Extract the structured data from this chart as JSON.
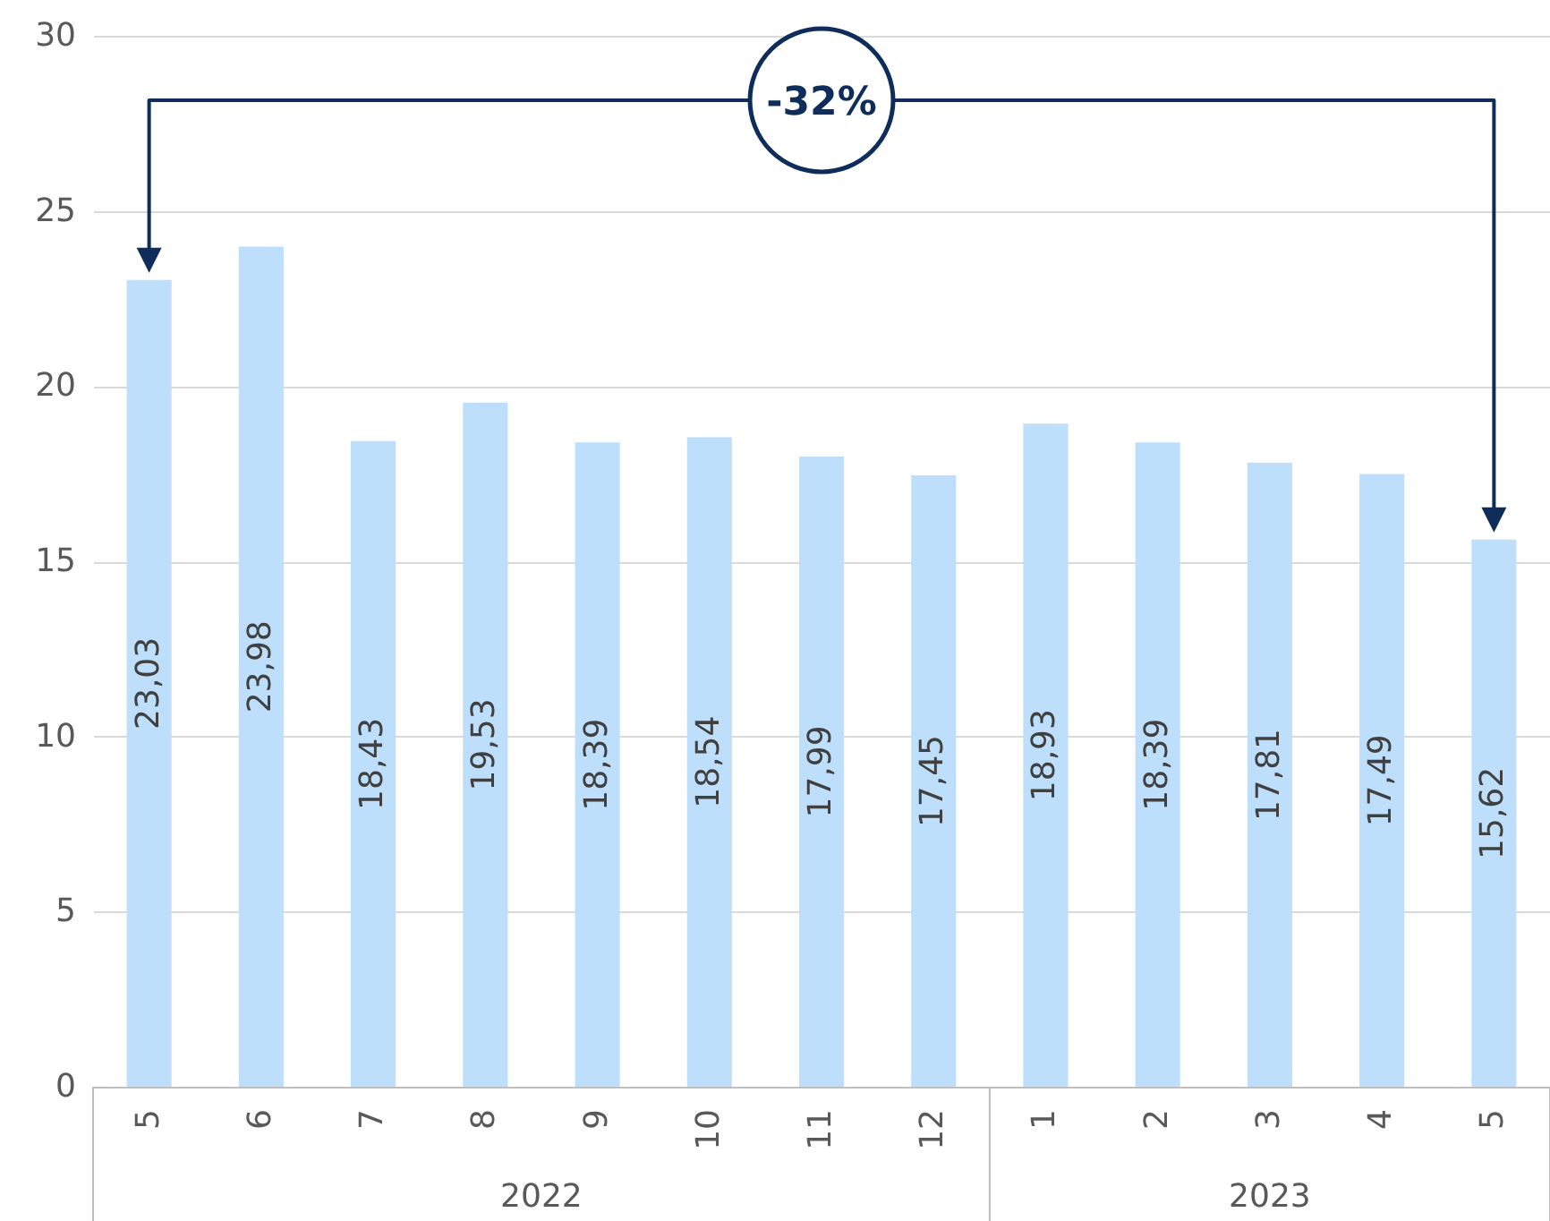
{
  "chart_data": {
    "type": "bar",
    "categories": [
      "5",
      "6",
      "7",
      "8",
      "9",
      "10",
      "11",
      "12",
      "1",
      "2",
      "3",
      "4",
      "5"
    ],
    "values": [
      23.03,
      23.98,
      18.43,
      19.53,
      18.39,
      18.54,
      17.99,
      17.45,
      18.93,
      18.39,
      17.81,
      17.49,
      15.62
    ],
    "value_labels": [
      "23,03",
      "23,98",
      "18,43",
      "19,53",
      "18,39",
      "18,54",
      "17,99",
      "17,45",
      "18,93",
      "18,39",
      "17,81",
      "17,49",
      "15,62"
    ],
    "color": "#bddffb",
    "ylim": [
      0,
      30
    ],
    "yticks": [
      0,
      5,
      10,
      15,
      20,
      25,
      30
    ],
    "grid": "y",
    "annotations": [
      "-32%",
      "2022",
      "2023"
    ]
  }
}
